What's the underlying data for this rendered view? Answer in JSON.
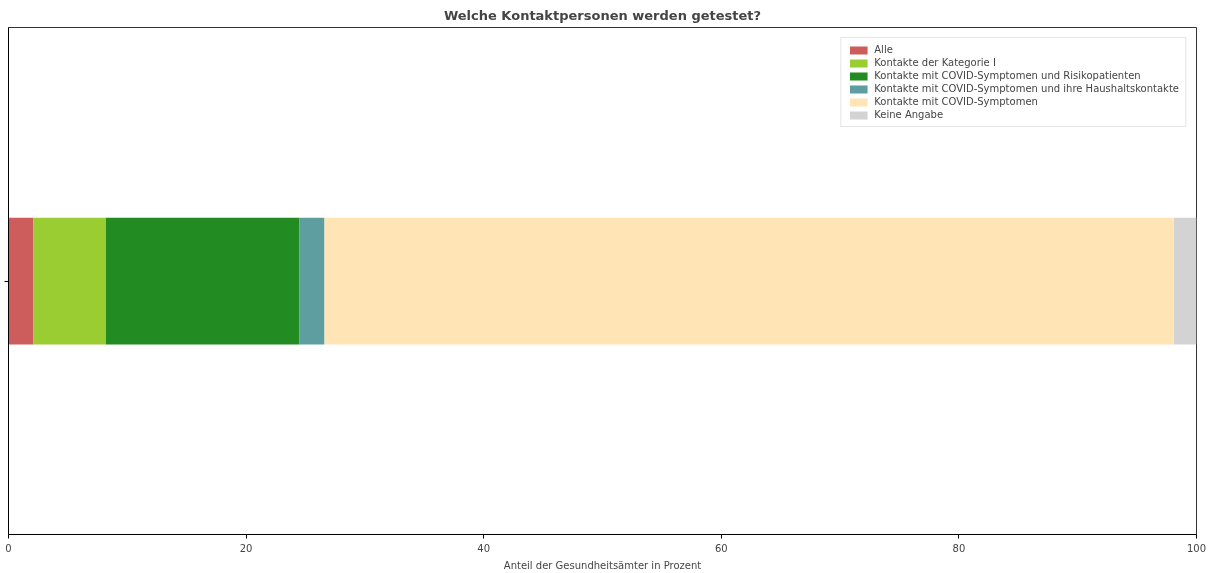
{
  "chart_data": {
    "type": "bar",
    "orientation": "horizontal",
    "stacked": true,
    "title": "Welche Kontaktpersonen werden getestet?",
    "xlabel": "Anteil der Gesundheitsämter in Prozent",
    "categories": [
      null
    ],
    "series": [
      {
        "name": "Alle",
        "color": "#cd5c5c",
        "values": [
          2.1
        ]
      },
      {
        "name": "Kontakte der Kategorie I",
        "color": "#9acd32",
        "values": [
          6.1
        ]
      },
      {
        "name": "Kontakte mit COVID-Symptomen und Risikopatienten",
        "color": "#228b22",
        "values": [
          16.3
        ]
      },
      {
        "name": "Kontakte mit COVID-Symptomen und ihre Haushaltskontakte",
        "color": "#5f9ea0",
        "values": [
          2.1
        ]
      },
      {
        "name": "Kontakte mit COVID-Symptomen",
        "color": "#ffe4b5",
        "values": [
          71.5
        ]
      },
      {
        "name": "Keine Angabe",
        "color": "#d3d3d3",
        "values": [
          1.9
        ]
      }
    ],
    "xlim": [
      0,
      100
    ],
    "xticks": [
      0,
      20,
      40,
      60,
      80,
      100
    ],
    "legend": "top right",
    "grid": false
  }
}
